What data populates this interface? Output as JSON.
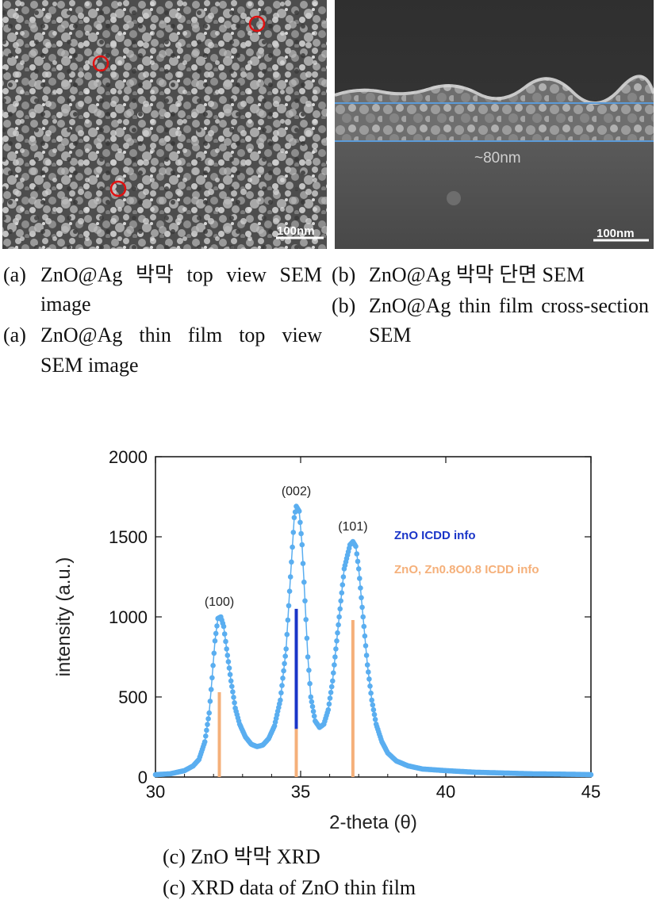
{
  "panel_a": {
    "scale_label": "100nm",
    "caption_kr_label": "(a)",
    "caption_kr_text": "ZnO@Ag 박막 top view SEM image",
    "caption_en_label": "(a)",
    "caption_en_text": "ZnO@Ag thin film top view SEM image"
  },
  "panel_b": {
    "thickness_label": "~80nm",
    "scale_label": "100nm",
    "caption_kr_label": "(b)",
    "caption_kr_text": "ZnO@Ag 박막 단면 SEM",
    "caption_en_label": "(b)",
    "caption_en_text": "ZnO@Ag thin film cross-section SEM"
  },
  "panel_c": {
    "caption_kr": "(c) ZnO 박막 XRD",
    "caption_en": "(c) XRD data of ZnO thin film"
  },
  "colors": {
    "measured": "#5aaef0",
    "zno_icdd": "#1a35c8",
    "zn_o_icdd": "#f5b07a",
    "marker_circle": "#e01010",
    "sem_line": "#5c9bd8"
  },
  "chart_data": {
    "type": "line",
    "xlabel": "2-theta (θ)",
    "ylabel": "intensity (a.u.)",
    "xlim": [
      30,
      45
    ],
    "ylim": [
      0,
      2000
    ],
    "xticks": [
      30,
      35,
      40,
      45
    ],
    "yticks": [
      0,
      500,
      1000,
      1500,
      2000
    ],
    "grid": false,
    "legend_position": "right",
    "legend": [
      {
        "name": "ZnO ICDD info",
        "color": "#1a35c8"
      },
      {
        "name": "ZnO, Zn0.8O0.8 ICDD info",
        "color": "#f5b07a"
      }
    ],
    "peak_labels": [
      {
        "label": "(100)",
        "x": 32.2,
        "y": 1000
      },
      {
        "label": "(002)",
        "x": 34.85,
        "y": 1690
      },
      {
        "label": "(101)",
        "x": 36.8,
        "y": 1470
      }
    ],
    "series": [
      {
        "values": [
          [
            30.0,
            15
          ],
          [
            30.5,
            20
          ],
          [
            31.0,
            40
          ],
          [
            31.3,
            70
          ],
          [
            31.5,
            110
          ],
          [
            31.7,
            220
          ],
          [
            31.85,
            400
          ],
          [
            31.95,
            620
          ],
          [
            32.05,
            850
          ],
          [
            32.15,
            990
          ],
          [
            32.25,
            1000
          ],
          [
            32.35,
            940
          ],
          [
            32.45,
            800
          ],
          [
            32.6,
            600
          ],
          [
            32.75,
            430
          ],
          [
            32.9,
            330
          ],
          [
            33.1,
            250
          ],
          [
            33.3,
            205
          ],
          [
            33.5,
            190
          ],
          [
            33.7,
            200
          ],
          [
            33.9,
            240
          ],
          [
            34.1,
            320
          ],
          [
            34.3,
            480
          ],
          [
            34.5,
            800
          ],
          [
            34.65,
            1250
          ],
          [
            34.78,
            1620
          ],
          [
            34.85,
            1690
          ],
          [
            34.95,
            1660
          ],
          [
            35.05,
            1450
          ],
          [
            35.15,
            1100
          ],
          [
            35.25,
            750
          ],
          [
            35.35,
            500
          ],
          [
            35.5,
            350
          ],
          [
            35.65,
            310
          ],
          [
            35.8,
            330
          ],
          [
            35.95,
            420
          ],
          [
            36.1,
            600
          ],
          [
            36.3,
            950
          ],
          [
            36.5,
            1300
          ],
          [
            36.7,
            1450
          ],
          [
            36.8,
            1470
          ],
          [
            36.9,
            1440
          ],
          [
            37.0,
            1300
          ],
          [
            37.15,
            1000
          ],
          [
            37.3,
            700
          ],
          [
            37.45,
            480
          ],
          [
            37.6,
            330
          ],
          [
            37.8,
            220
          ],
          [
            38.0,
            150
          ],
          [
            38.3,
            100
          ],
          [
            38.7,
            70
          ],
          [
            39.2,
            50
          ],
          [
            40.0,
            40
          ],
          [
            41.0,
            30
          ],
          [
            42.0,
            25
          ],
          [
            43.0,
            20
          ],
          [
            44.0,
            18
          ],
          [
            45.0,
            15
          ]
        ]
      }
    ],
    "reference_lines": [
      {
        "series": "ZnO ICDD info",
        "x": 34.85,
        "y": 1050,
        "from": 300
      },
      {
        "series": "ZnO, Zn0.8O0.8 ICDD info",
        "x": 32.2,
        "y": 530,
        "from": 0
      },
      {
        "series": "ZnO, Zn0.8O0.8 ICDD info",
        "x": 34.85,
        "y": 300,
        "from": 0
      },
      {
        "series": "ZnO, Zn0.8O0.8 ICDD info",
        "x": 36.8,
        "y": 980,
        "from": 0
      }
    ]
  }
}
